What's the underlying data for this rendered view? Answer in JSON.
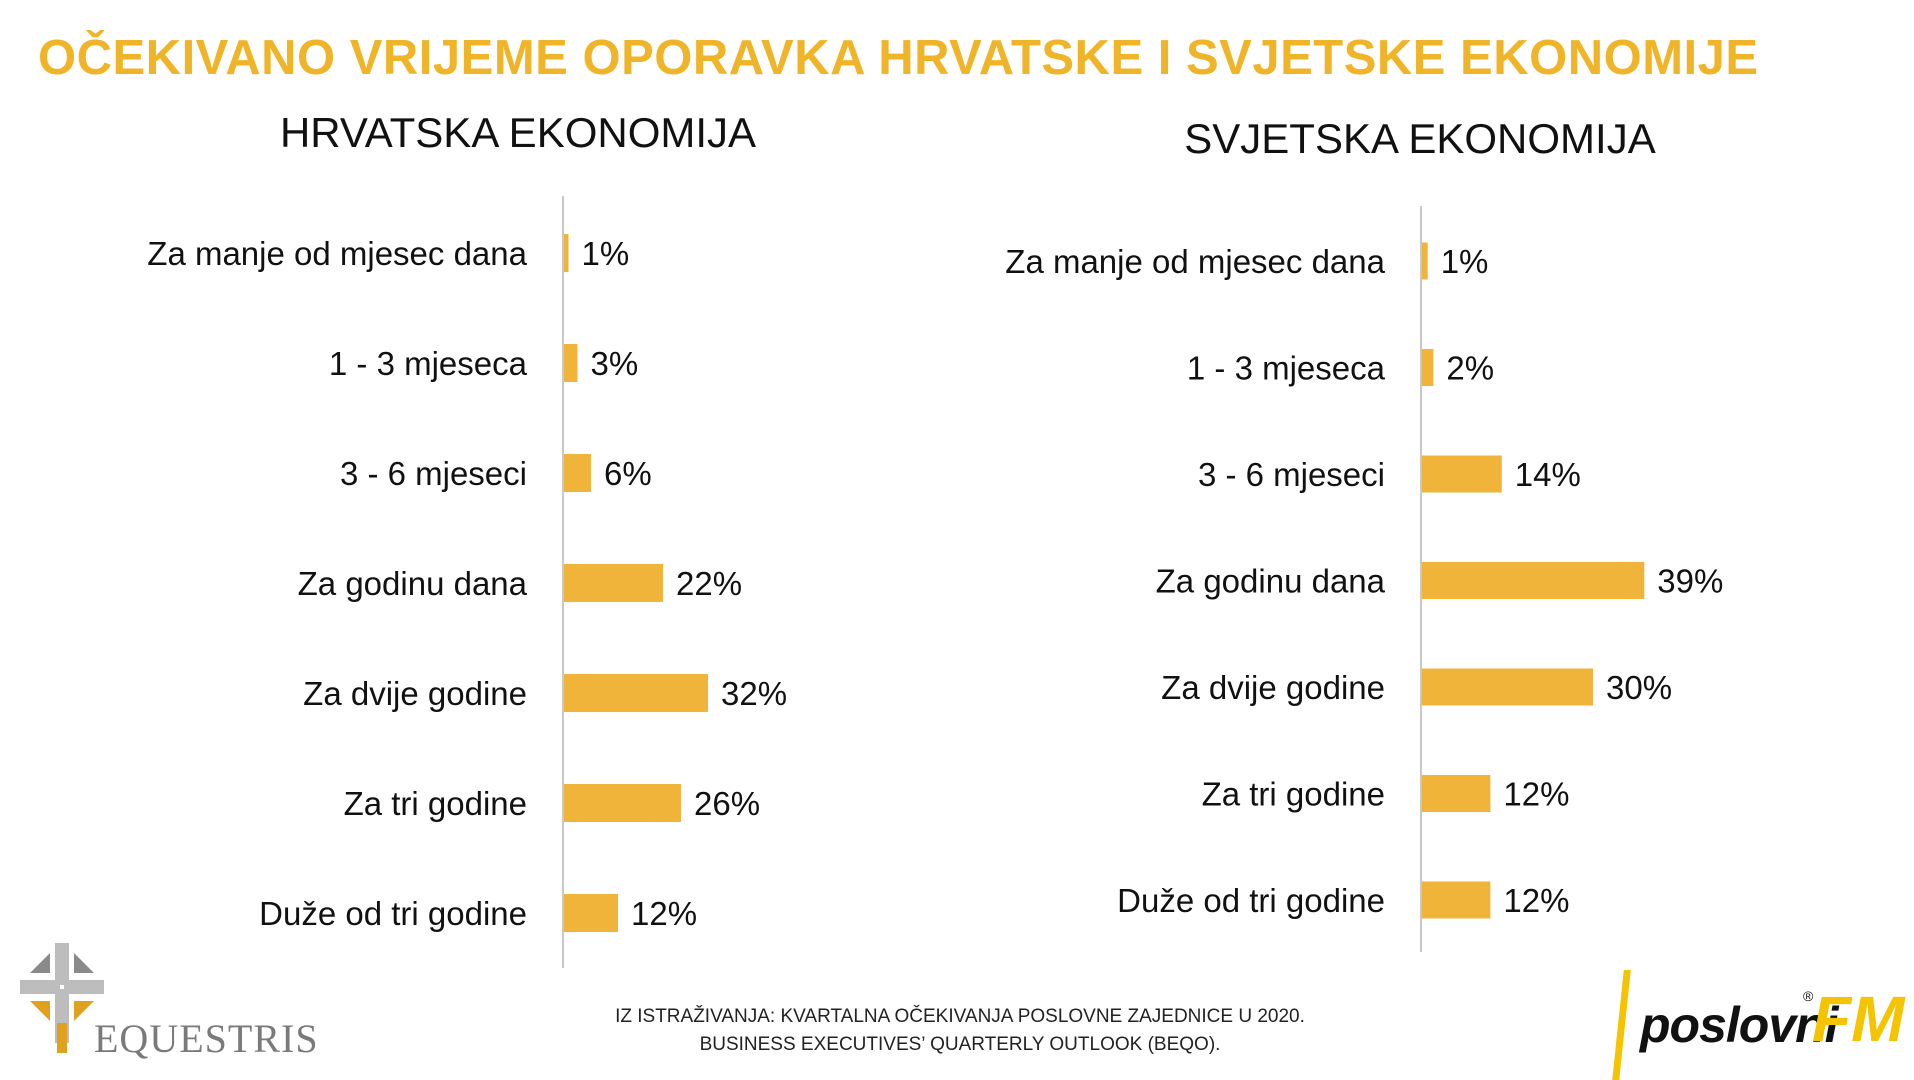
{
  "title": "OČEKIVANO VRIJEME OPORAVKA HRVATSKE I SVJETSKE EKONOMIJE",
  "colors": {
    "accent": "#F0B429",
    "bar": "#F0B43A",
    "axis": "#c8c8c8",
    "text": "#111111"
  },
  "chart_data": [
    {
      "type": "bar",
      "orientation": "horizontal",
      "title": "HRVATSKA EKONOMIJA",
      "categories": [
        "Za manje od mjesec dana",
        "1 - 3 mjeseca",
        "3 - 6 mjeseci",
        "Za godinu dana",
        "Za dvije godine",
        "Za tri godine",
        "Duže od tri godine"
      ],
      "values": [
        1,
        3,
        6,
        22,
        32,
        26,
        12
      ],
      "value_labels": [
        "1%",
        "3%",
        "6%",
        "22%",
        "32%",
        "26%",
        "12%"
      ],
      "unit": "%",
      "grid": false
    },
    {
      "type": "bar",
      "orientation": "horizontal",
      "title": "SVJETSKA EKONOMIJA",
      "categories": [
        "Za manje od mjesec dana",
        "1 - 3 mjeseca",
        "3 - 6 mjeseci",
        "Za godinu dana",
        "Za dvije godine",
        "Za tri godine",
        "Duže od tri godine"
      ],
      "values": [
        1,
        2,
        14,
        39,
        30,
        12,
        12
      ],
      "value_labels": [
        "1%",
        "2%",
        "14%",
        "39%",
        "30%",
        "12%",
        "12%"
      ],
      "unit": "%",
      "grid": false
    }
  ],
  "footer": {
    "line1": "IZ ISTRAŽIVANJA: KVARTALNA OČEKIVANJA POSLOVNE ZAJEDNICE U 2020.",
    "line2": "BUSINESS EXECUTIVES’ QUARTERLY OUTLOOK (BEQO)."
  },
  "logos": {
    "left_text": "EQUESTRIS",
    "right_text_main": "poslovni",
    "right_text_accent": "FM",
    "right_mark": "®"
  }
}
